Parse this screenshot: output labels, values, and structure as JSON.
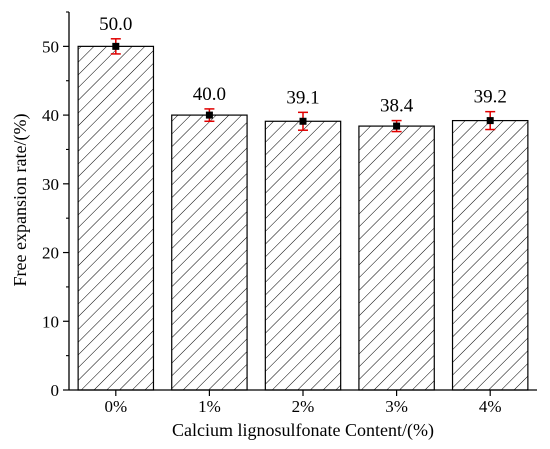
{
  "chart_data": {
    "type": "bar",
    "title": "",
    "xlabel": "Calcium lignosulfonate Content/(%)",
    "ylabel": "Free expansion rate/(%)",
    "categories": [
      "0%",
      "1%",
      "2%",
      "3%",
      "4%"
    ],
    "values": [
      50.0,
      40.0,
      39.1,
      38.4,
      39.2
    ],
    "value_labels": [
      "50.0",
      "40.0",
      "39.1",
      "38.4",
      "39.2"
    ],
    "error": [
      1.1,
      0.9,
      1.3,
      0.8,
      1.3
    ],
    "ylim": [
      0,
      55
    ],
    "yticks": [
      0,
      10,
      20,
      30,
      40,
      50
    ],
    "ytick_labels": [
      "0",
      "10",
      "20",
      "30",
      "40",
      "50"
    ],
    "grid": false,
    "bar_fill": "hatched",
    "colors": {
      "bar_edge": "#000000",
      "hatch": "#000000",
      "error_bar": "#e00000",
      "marker": "#000000"
    }
  }
}
